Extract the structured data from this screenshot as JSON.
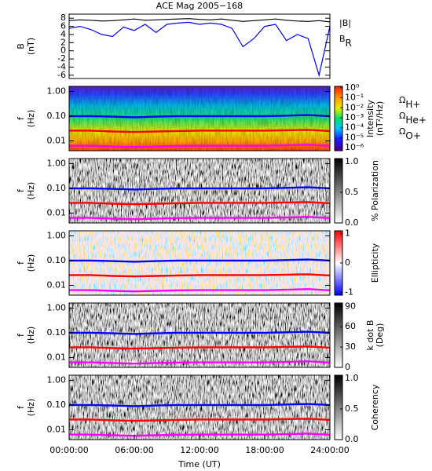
{
  "chart_data": [
    {
      "type": "line",
      "title": "ACE Mag 2005−168",
      "ylabel": [
        "B",
        "(nT)"
      ],
      "xlim": [
        0,
        24
      ],
      "ylim": [
        -6.8,
        9
      ],
      "yticks": [
        -6,
        -4,
        -2,
        0,
        2,
        4,
        6,
        8
      ],
      "x": [
        0,
        1,
        2,
        3,
        4,
        5,
        6,
        7,
        8,
        9,
        10,
        11,
        12,
        13,
        14,
        15,
        16,
        17,
        18,
        19,
        20,
        21,
        22,
        23,
        24
      ],
      "series": [
        {
          "name": "|B|",
          "color": "#000000",
          "values": [
            7.4,
            7.6,
            7.5,
            7.3,
            7.4,
            7.6,
            7.8,
            7.5,
            7.6,
            7.7,
            7.8,
            7.9,
            7.7,
            7.6,
            7.8,
            7.5,
            7.2,
            7.4,
            7.6,
            7.8,
            7.5,
            7.3,
            7.2,
            7.4,
            7.1
          ]
        },
        {
          "name": "BR",
          "color": "#0000ff",
          "values": [
            5.5,
            6,
            5.2,
            4,
            3.5,
            5.8,
            5,
            6.5,
            4.5,
            6.5,
            6.8,
            7,
            6.5,
            6.8,
            6.5,
            5.5,
            1,
            3,
            6,
            6.5,
            2.5,
            4,
            3,
            -6,
            6
          ]
        }
      ]
    },
    {
      "type": "spectrogram",
      "colormap": "rainbow",
      "ylabel": [
        "f",
        "(Hz)"
      ],
      "xlim": [
        0,
        24
      ],
      "ylim": [
        0.004,
        1.6
      ],
      "log_scale": true,
      "yticks": [
        {
          "value": 1,
          "label": "1.00"
        },
        {
          "value": 0.1,
          "label": "0.10"
        },
        0.01
      ],
      "colorbar_label": [
        "Intensity",
        "(nT²/Hz)"
      ],
      "colorbar_lim": [
        5e-07,
        1.4
      ],
      "colorbar_log": true,
      "colorbar_ticks": [
        {
          "value": 1,
          "label": "10⁰"
        },
        {
          "value": 0.1,
          "label": "10⁻¹"
        },
        {
          "value": 0.01,
          "label": "10⁻²"
        },
        {
          "value": 0.001,
          "label": "10⁻³"
        },
        {
          "value": 0.0001,
          "label": "10⁻⁴"
        },
        {
          "value": 1e-05,
          "label": "10⁻⁵"
        },
        {
          "value": 1e-06,
          "label": "10⁻⁶"
        }
      ],
      "x": [
        0,
        2,
        4,
        6,
        8,
        10,
        12,
        14,
        16,
        18,
        20,
        22,
        24
      ],
      "series": [
        {
          "name": "ΩH+",
          "color": "#0000ff",
          "values": [
            0.1,
            0.1,
            0.095,
            0.09,
            0.095,
            0.1,
            0.1,
            0.1,
            0.1,
            0.1,
            0.105,
            0.11,
            0.1
          ]
        },
        {
          "name": "ΩHe+",
          "color": "#ff0000",
          "values": [
            0.026,
            0.026,
            0.024,
            0.023,
            0.024,
            0.025,
            0.026,
            0.026,
            0.026,
            0.026,
            0.027,
            0.028,
            0.025
          ]
        },
        {
          "name": "ΩO+",
          "color": "#ff00ff",
          "values": [
            0.0064,
            0.0064,
            0.006,
            0.0057,
            0.006,
            0.0063,
            0.0064,
            0.0064,
            0.0064,
            0.0064,
            0.0066,
            0.007,
            0.0063
          ]
        }
      ]
    },
    {
      "type": "spectrogram",
      "colormap": "gray",
      "ylabel": [
        "f",
        "(Hz)"
      ],
      "xlim": [
        0,
        24
      ],
      "ylim": [
        0.004,
        1.6
      ],
      "log_scale": true,
      "yticks": [
        {
          "value": 1,
          "label": "1.00"
        },
        {
          "value": 0.1,
          "label": "0.10"
        },
        0.01
      ],
      "colorbar_label": [
        "% Polarization"
      ],
      "colorbar_lim": [
        0,
        1.05
      ],
      "colorbar_ticks": [
        {
          "value": 1,
          "label": "1.0"
        },
        {
          "value": 0.5,
          "label": "0.5"
        },
        {
          "value": 0,
          "label": "0.0"
        }
      ],
      "x": [
        0,
        2,
        4,
        6,
        8,
        10,
        12,
        14,
        16,
        18,
        20,
        22,
        24
      ],
      "series": [
        {
          "color": "#0000ff",
          "values": [
            0.1,
            0.1,
            0.095,
            0.09,
            0.095,
            0.1,
            0.1,
            0.1,
            0.1,
            0.1,
            0.105,
            0.11,
            0.1
          ]
        },
        {
          "color": "#ff0000",
          "values": [
            0.026,
            0.026,
            0.024,
            0.023,
            0.024,
            0.025,
            0.026,
            0.026,
            0.026,
            0.026,
            0.027,
            0.028,
            0.025
          ]
        },
        {
          "color": "#ff00ff",
          "values": [
            0.0064,
            0.0064,
            0.006,
            0.0057,
            0.006,
            0.0063,
            0.0064,
            0.0064,
            0.0064,
            0.0064,
            0.0066,
            0.007,
            0.0063
          ]
        }
      ]
    },
    {
      "type": "spectrogram",
      "colormap": "redblue",
      "ylabel": [
        "f",
        "(Hz)"
      ],
      "xlim": [
        0,
        24
      ],
      "ylim": [
        0.004,
        1.6
      ],
      "log_scale": true,
      "yticks": [
        {
          "value": 1,
          "label": "1.00"
        },
        {
          "value": 0.1,
          "label": "0.10"
        },
        0.01
      ],
      "colorbar_label": [
        "Ellipticity"
      ],
      "colorbar_lim": [
        -1.1,
        1.1
      ],
      "colorbar_ticks": [
        1,
        0,
        -1
      ],
      "x": [
        0,
        2,
        4,
        6,
        8,
        10,
        12,
        14,
        16,
        18,
        20,
        22,
        24
      ],
      "series": [
        {
          "color": "#0000ff",
          "values": [
            0.1,
            0.1,
            0.095,
            0.09,
            0.095,
            0.1,
            0.1,
            0.1,
            0.1,
            0.1,
            0.105,
            0.11,
            0.1
          ]
        },
        {
          "color": "#ff0000",
          "values": [
            0.026,
            0.026,
            0.024,
            0.023,
            0.024,
            0.025,
            0.026,
            0.026,
            0.026,
            0.026,
            0.027,
            0.028,
            0.025
          ]
        },
        {
          "color": "#ff00ff",
          "values": [
            0.0064,
            0.0064,
            0.006,
            0.0057,
            0.006,
            0.0063,
            0.0064,
            0.0064,
            0.0064,
            0.0064,
            0.0066,
            0.007,
            0.0063
          ]
        }
      ]
    },
    {
      "type": "spectrogram",
      "colormap": "gray",
      "ylabel": [
        "f",
        "(Hz)"
      ],
      "xlim": [
        0,
        24
      ],
      "ylim": [
        0.004,
        1.6
      ],
      "log_scale": true,
      "yticks": [
        {
          "value": 1,
          "label": "1.00"
        },
        {
          "value": 0.1,
          "label": "0.10"
        },
        0.01
      ],
      "colorbar_label": [
        "k dot B",
        "(Deg)"
      ],
      "colorbar_lim": [
        0,
        95
      ],
      "colorbar_ticks": [
        90,
        60,
        30,
        0
      ],
      "x": [
        0,
        2,
        4,
        6,
        8,
        10,
        12,
        14,
        16,
        18,
        20,
        22,
        24
      ],
      "series": [
        {
          "color": "#0000ff",
          "values": [
            0.1,
            0.1,
            0.095,
            0.09,
            0.095,
            0.1,
            0.1,
            0.1,
            0.1,
            0.1,
            0.105,
            0.11,
            0.1
          ]
        },
        {
          "color": "#ff0000",
          "values": [
            0.026,
            0.026,
            0.024,
            0.023,
            0.024,
            0.025,
            0.026,
            0.026,
            0.026,
            0.026,
            0.027,
            0.028,
            0.025
          ]
        },
        {
          "color": "#ff00ff",
          "values": [
            0.0064,
            0.0064,
            0.006,
            0.0057,
            0.006,
            0.0063,
            0.0064,
            0.0064,
            0.0064,
            0.0064,
            0.0066,
            0.007,
            0.0063
          ]
        }
      ]
    },
    {
      "type": "spectrogram",
      "colormap": "gray",
      "ylabel": [
        "f",
        "(Hz)"
      ],
      "xlim": [
        0,
        24
      ],
      "ylim": [
        0.004,
        1.6
      ],
      "log_scale": true,
      "yticks": [
        {
          "value": 1,
          "label": "1.00"
        },
        {
          "value": 0.1,
          "label": "0.10"
        },
        0.01
      ],
      "colorbar_label": [
        "Coherency"
      ],
      "colorbar_lim": [
        0,
        1.05
      ],
      "colorbar_ticks": [
        {
          "value": 1,
          "label": "1.0"
        },
        {
          "value": 0.5,
          "label": "0.5"
        },
        {
          "value": 0,
          "label": "0.0"
        }
      ],
      "xlabel": "Time (UT)",
      "xticks": [
        {
          "value": 0,
          "label": "00:00:00"
        },
        {
          "value": 6,
          "label": "06:00:00"
        },
        {
          "value": 12,
          "label": "12:00:00"
        },
        {
          "value": 18,
          "label": "18:00:00"
        },
        {
          "value": 24,
          "label": "24:00:00"
        }
      ],
      "x": [
        0,
        2,
        4,
        6,
        8,
        10,
        12,
        14,
        16,
        18,
        20,
        22,
        24
      ],
      "series": [
        {
          "color": "#0000ff",
          "values": [
            0.1,
            0.1,
            0.095,
            0.09,
            0.095,
            0.1,
            0.1,
            0.1,
            0.1,
            0.1,
            0.105,
            0.11,
            0.1
          ]
        },
        {
          "color": "#ff0000",
          "values": [
            0.026,
            0.026,
            0.024,
            0.023,
            0.024,
            0.025,
            0.026,
            0.026,
            0.026,
            0.026,
            0.027,
            0.028,
            0.025
          ]
        },
        {
          "color": "#ff00ff",
          "values": [
            0.0064,
            0.0064,
            0.006,
            0.0057,
            0.006,
            0.0063,
            0.0064,
            0.0064,
            0.0064,
            0.0064,
            0.0066,
            0.007,
            0.0063
          ]
        }
      ]
    }
  ]
}
